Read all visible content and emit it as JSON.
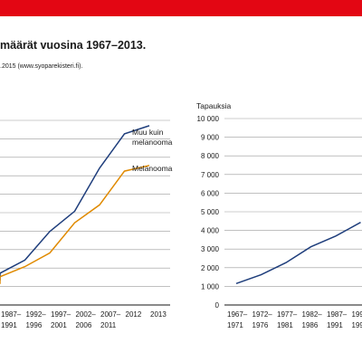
{
  "colors": {
    "top_bar": "#e30613",
    "series_muu": "#1f3e7c",
    "series_melanooma": "#e08a00",
    "gridline": "#9a9a9a"
  },
  "header": {
    "title": "määrät vuosina 1967–2013.",
    "source": ".2015 (www.syoparekisteri.fi)."
  },
  "chart_data": [
    {
      "type": "line",
      "x": [
        "1987–1991",
        "1992–1996",
        "1997–2001",
        "2002–2006",
        "2007–2011",
        "2012",
        "2013"
      ],
      "x_tick_labels": [
        {
          "top": "1987–",
          "bottom": "1991"
        },
        {
          "top": "1992–",
          "bottom": "1996"
        },
        {
          "top": "1997–",
          "bottom": "2001"
        },
        {
          "top": "2002–",
          "bottom": "2006"
        },
        {
          "top": "2007–",
          "bottom": "2011"
        },
        {
          "top": "2012",
          "bottom": ""
        },
        {
          "top": "2013",
          "bottom": ""
        }
      ],
      "series": [
        {
          "name": "Muu kuin melanooma",
          "label_lines": [
            "Muu kuin",
            "melanooma"
          ],
          "values": [
            1720,
            2430,
            3980,
            5080,
            7410,
            9270,
            9710
          ]
        },
        {
          "name": "Melanooma",
          "label_lines": [
            "Melanooma"
          ],
          "values": [
            1530,
            2080,
            2820,
            4450,
            5420,
            7250,
            7560
          ]
        }
      ],
      "ylim": [
        0,
        10000
      ],
      "grid": true,
      "legend": "inline labels at line ends"
    },
    {
      "type": "line",
      "ylabel": "Tapauksia",
      "y_ticks": [
        "0",
        "1 000",
        "2 000",
        "3 000",
        "4 000",
        "5 000",
        "6 000",
        "7 000",
        "8 000",
        "9 000",
        "10 000"
      ],
      "x_tick_labels": [
        {
          "top": "1967–",
          "bottom": "1971"
        },
        {
          "top": "1972–",
          "bottom": "1976"
        },
        {
          "top": "1977–",
          "bottom": "1981"
        },
        {
          "top": "1982–",
          "bottom": "1986"
        },
        {
          "top": "1987–",
          "bottom": "1991"
        },
        {
          "top": "1992–",
          "bottom": "1996"
        }
      ],
      "series": [
        {
          "name": "",
          "values": [
            1150,
            1620,
            2270,
            3120,
            3700,
            4430
          ]
        }
      ],
      "ylim": [
        0,
        10000
      ],
      "grid": true,
      "legend": "none"
    }
  ]
}
